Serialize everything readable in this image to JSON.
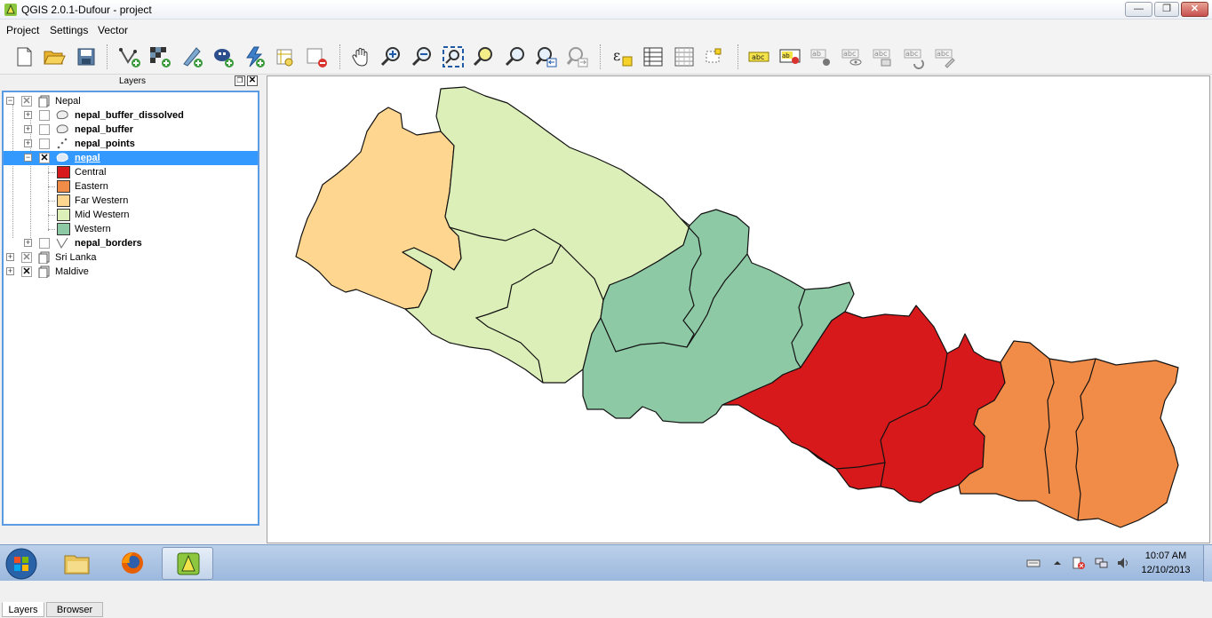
{
  "window": {
    "title": "QGIS 2.0.1-Dufour - project",
    "minimize_label": "—",
    "maximize_label": "❐",
    "close_label": "✕"
  },
  "menu": {
    "items": [
      "Project",
      "Settings",
      "Vector"
    ]
  },
  "toolbar": {
    "icons": [
      "new-project-icon",
      "open-project-icon",
      "save-project-icon",
      "new-vector-layer-icon",
      "add-raster-layer-icon",
      "add-postgis-layer-icon",
      "add-spatialite-layer-icon",
      "add-wms-layer-icon",
      "add-layer-icon",
      "remove-layer-icon",
      "pan-icon",
      "zoom-in-icon",
      "zoom-out-icon",
      "zoom-full-icon",
      "zoom-to-selection-icon",
      "zoom-to-layer-icon",
      "zoom-last-icon",
      "zoom-next-icon",
      "field-calculator-icon",
      "attribute-table-icon",
      "statistics-icon",
      "annotation-icon",
      "label-icon",
      "layer-labeling-icon",
      "pin-labels-icon",
      "show-hide-labels-icon",
      "move-label-icon",
      "rotate-label-icon",
      "change-label-icon"
    ]
  },
  "layers_panel": {
    "title": "Layers",
    "tree": {
      "nepal_group": "Nepal",
      "layers": [
        {
          "label": "nepal_buffer_dissolved",
          "checked": false
        },
        {
          "label": "nepal_buffer",
          "checked": false
        },
        {
          "label": "nepal_points",
          "checked": false
        },
        {
          "label": "nepal",
          "checked": true
        },
        {
          "label": "nepal_borders",
          "checked": false
        }
      ],
      "legend": [
        {
          "label": "Central",
          "color": "#d7191c"
        },
        {
          "label": "Eastern",
          "color": "#f08b48"
        },
        {
          "label": "Far Western",
          "color": "#fed690"
        },
        {
          "label": "Mid Western",
          "color": "#dcefb8"
        },
        {
          "label": "Western",
          "color": "#8ec9a6"
        }
      ],
      "other_groups": [
        {
          "label": "Sri Lanka",
          "checked": "partial"
        },
        {
          "label": "Maldive",
          "checked": true
        }
      ]
    },
    "tabs": [
      "Layers",
      "Browser"
    ]
  },
  "map": {
    "regions": [
      {
        "name": "Far Western",
        "color": "#fed690"
      },
      {
        "name": "Mid Western",
        "color": "#dcefb8"
      },
      {
        "name": "Western",
        "color": "#8ec9a6"
      },
      {
        "name": "Central",
        "color": "#d7191c"
      },
      {
        "name": "Eastern",
        "color": "#f08b48"
      }
    ]
  },
  "taskbar": {
    "apps": [
      "start-icon",
      "windows-explorer-icon",
      "firefox-icon",
      "qgis-icon"
    ],
    "clock_time": "10:07 AM",
    "clock_date": "12/10/2013"
  }
}
